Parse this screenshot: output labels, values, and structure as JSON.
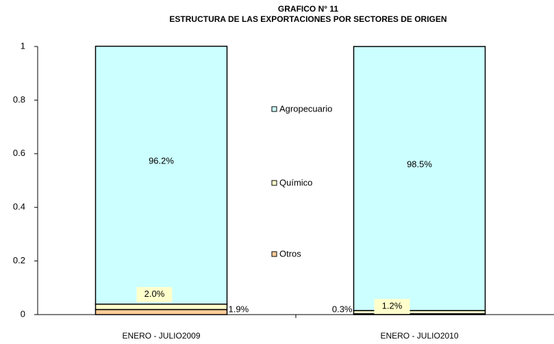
{
  "chart_data": {
    "type": "stacked_bar",
    "title": "GRAFICO N° 11",
    "subtitle": "ESTRUCTURA DE LAS EXPORTACIONES POR SECTORES DE ORIGEN",
    "categories": [
      "ENERO - JULIO2009",
      "ENERO - JULIO2010"
    ],
    "series": [
      {
        "name": "Otros",
        "color": "#ffcc99",
        "values": [
          0.019,
          0.003
        ],
        "value_labels": [
          "1.9%",
          "0.3%"
        ]
      },
      {
        "name": "Químico",
        "color": "#ffffcc",
        "values": [
          0.02,
          0.012
        ],
        "value_labels": [
          "2.0%",
          "1.2%"
        ]
      },
      {
        "name": "Agropecuario",
        "color": "#ccffff",
        "values": [
          0.962,
          0.985
        ],
        "value_labels": [
          "96.2%",
          "98.5%"
        ]
      }
    ],
    "ylim": [
      0,
      1
    ],
    "yticks": [
      0,
      0.2,
      0.4,
      0.6,
      0.8,
      1
    ],
    "grid": false
  }
}
